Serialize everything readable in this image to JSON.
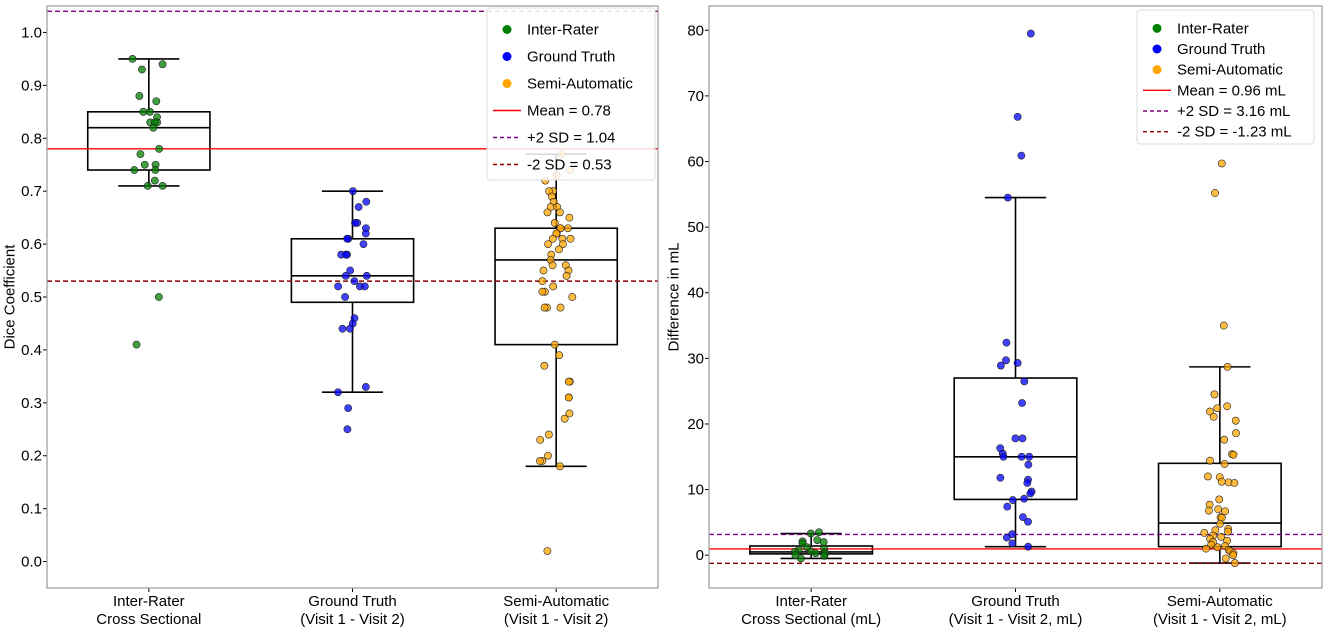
{
  "chart_data": [
    {
      "type": "box",
      "title": "",
      "ylabel": "Dice Coefficient",
      "ylim": [
        -0.05,
        1.05
      ],
      "yticks": [
        "0.0",
        "0.1",
        "0.2",
        "0.3",
        "0.4",
        "0.5",
        "0.6",
        "0.7",
        "0.8",
        "0.9",
        "1.0"
      ],
      "ytick_values": [
        0,
        0.1,
        0.2,
        0.3,
        0.4,
        0.5,
        0.6,
        0.7,
        0.8,
        0.9,
        1.0
      ],
      "categories": [
        [
          "Inter-Rater",
          "Cross Sectional"
        ],
        [
          "Ground Truth",
          "(Visit 1 - Visit 2)"
        ],
        [
          "Semi-Automatic",
          "(Visit 1 - Visit 2)"
        ]
      ],
      "series": [
        {
          "name": "Inter-Rater",
          "color": "#008000",
          "box": {
            "q1": 0.74,
            "median": 0.82,
            "q3": 0.85,
            "whisker_low": 0.71,
            "whisker_high": 0.95
          },
          "points": [
            0.95,
            0.94,
            0.93,
            0.88,
            0.87,
            0.85,
            0.85,
            0.84,
            0.83,
            0.83,
            0.83,
            0.82,
            0.78,
            0.77,
            0.75,
            0.75,
            0.74,
            0.74,
            0.72,
            0.71,
            0.71,
            0.5,
            0.41
          ]
        },
        {
          "name": "Ground Truth",
          "color": "#0000ff",
          "box": {
            "q1": 0.49,
            "median": 0.54,
            "q3": 0.61,
            "whisker_low": 0.32,
            "whisker_high": 0.7
          },
          "points": [
            0.7,
            0.68,
            0.67,
            0.64,
            0.64,
            0.63,
            0.62,
            0.61,
            0.61,
            0.6,
            0.58,
            0.58,
            0.58,
            0.55,
            0.54,
            0.54,
            0.53,
            0.52,
            0.52,
            0.52,
            0.5,
            0.46,
            0.45,
            0.44,
            0.44,
            0.33,
            0.32,
            0.29,
            0.25
          ]
        },
        {
          "name": "Semi-Automatic",
          "color": "#ffa500",
          "box": {
            "q1": 0.41,
            "median": 0.57,
            "q3": 0.63,
            "whisker_low": 0.18,
            "whisker_high": 0.77
          },
          "points": [
            0.77,
            0.74,
            0.73,
            0.72,
            0.7,
            0.7,
            0.69,
            0.68,
            0.67,
            0.67,
            0.66,
            0.66,
            0.65,
            0.64,
            0.63,
            0.63,
            0.63,
            0.62,
            0.62,
            0.61,
            0.61,
            0.61,
            0.6,
            0.6,
            0.59,
            0.58,
            0.57,
            0.56,
            0.56,
            0.55,
            0.55,
            0.54,
            0.53,
            0.52,
            0.51,
            0.51,
            0.5,
            0.48,
            0.48,
            0.48,
            0.41,
            0.39,
            0.37,
            0.34,
            0.34,
            0.31,
            0.31,
            0.28,
            0.27,
            0.24,
            0.23,
            0.2,
            0.19,
            0.19,
            0.18,
            0.02
          ]
        }
      ],
      "reference_lines": [
        {
          "label": "Mean = 0.78",
          "value": 0.78,
          "color": "#ff0000",
          "style": "solid"
        },
        {
          "label": "+2 SD = 1.04",
          "value": 1.04,
          "color": "#800080",
          "style": "dashed"
        },
        {
          "label": "-2 SD = 0.53",
          "value": 0.53,
          "color": "#8b0000",
          "style": "dashed"
        }
      ],
      "legend_position": "top-right"
    },
    {
      "type": "box",
      "title": "",
      "ylabel": "Difference in mL",
      "ylim": [
        -5,
        83.7
      ],
      "yticks": [
        "0",
        "10",
        "20",
        "30",
        "40",
        "50",
        "60",
        "70",
        "80"
      ],
      "ytick_values": [
        0,
        10,
        20,
        30,
        40,
        50,
        60,
        70,
        80
      ],
      "categories": [
        [
          "Inter-Rater",
          "Cross Sectional (mL)"
        ],
        [
          "Ground Truth",
          "(Visit 1 - Visit 2, mL)"
        ],
        [
          "Semi-Automatic",
          "(Visit 1 - Visit 2, mL)"
        ]
      ],
      "series": [
        {
          "name": "Inter-Rater",
          "color": "#008000",
          "box": {
            "q1": 0.2,
            "median": 0.5,
            "q3": 1.4,
            "whisker_low": -0.5,
            "whisker_high": 3.3
          },
          "points": [
            3.5,
            3.3,
            2.3,
            2.1,
            2.0,
            1.8,
            1.2,
            1.0,
            0.8,
            0.6,
            0.5,
            0.4,
            0.3,
            0.2,
            0.0,
            -0.1,
            -0.5
          ]
        },
        {
          "name": "Ground Truth",
          "color": "#0000ff",
          "box": {
            "q1": 8.5,
            "median": 15.0,
            "q3": 27.0,
            "whisker_low": 1.3,
            "whisker_high": 54.5
          },
          "points": [
            79.5,
            66.8,
            60.9,
            54.5,
            32.4,
            29.7,
            29.3,
            28.9,
            26.5,
            23.2,
            17.8,
            17.8,
            16.3,
            15.5,
            15.0,
            15.0,
            15.0,
            13.8,
            11.8,
            11.5,
            11.0,
            9.7,
            9.4,
            8.6,
            8.4,
            7.4,
            5.8,
            5.1,
            3.2,
            2.7,
            1.8,
            1.3
          ]
        },
        {
          "name": "Semi-Automatic",
          "color": "#ffa500",
          "box": {
            "q1": 1.3,
            "median": 4.9,
            "q3": 14.0,
            "whisker_low": -1.2,
            "whisker_high": 28.7
          },
          "points": [
            59.7,
            55.2,
            35.0,
            28.7,
            24.5,
            22.7,
            22.4,
            21.9,
            21.1,
            20.5,
            18.6,
            17.6,
            15.4,
            15.3,
            14.4,
            13.9,
            12.0,
            11.9,
            11.2,
            11.1,
            11.0,
            8.5,
            7.7,
            7.0,
            6.8,
            6.7,
            5.8,
            5.7,
            4.8,
            4.0,
            3.8,
            3.6,
            3.4,
            3.0,
            2.8,
            2.5,
            2.2,
            2.0,
            1.6,
            1.4,
            1.2,
            1.0,
            0.8,
            0.6,
            0.3,
            0.0,
            -0.5,
            -1.2
          ]
        }
      ],
      "reference_lines": [
        {
          "label": "Mean = 0.96 mL",
          "value": 0.96,
          "color": "#ff0000",
          "style": "solid"
        },
        {
          "label": "+2 SD = 3.16 mL",
          "value": 3.16,
          "color": "#800080",
          "style": "dashed"
        },
        {
          "label": "-2 SD = -1.23 mL",
          "value": -1.23,
          "color": "#8b0000",
          "style": "dashed"
        }
      ],
      "legend_position": "top-right"
    }
  ]
}
